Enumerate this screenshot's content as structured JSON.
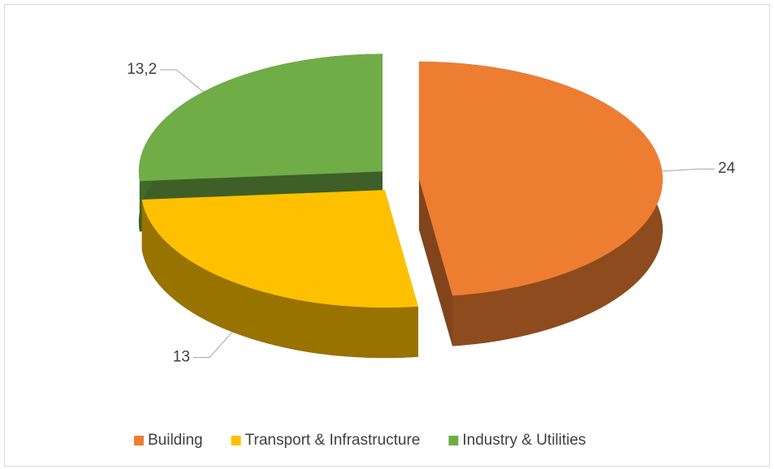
{
  "chart_data": {
    "type": "pie",
    "categories": [
      "Building",
      "Transport & Infrastructure",
      "Industry & Utilities"
    ],
    "values": [
      24,
      13,
      13.2
    ],
    "value_labels": [
      "24",
      "13",
      "13,2"
    ],
    "colors": [
      "#ed7d31",
      "#ffc000",
      "#70ad47"
    ],
    "legend": "bottom"
  }
}
